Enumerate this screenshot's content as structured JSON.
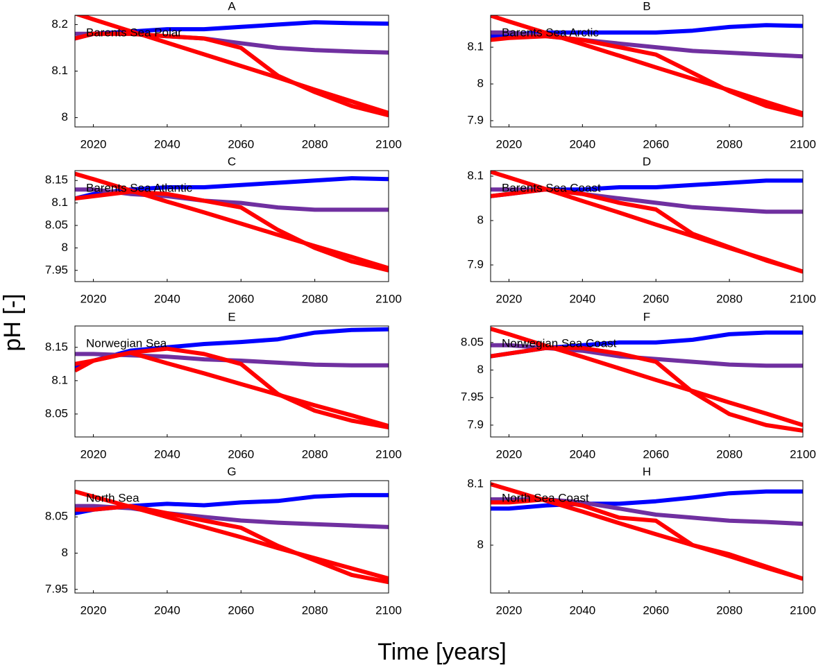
{
  "x_label": "Time [years]",
  "y_label": "pH [-]",
  "chart_data": [
    {
      "type": "line",
      "title": "A",
      "annotation": "Barents Sea Polar",
      "x": [
        2015,
        2020,
        2030,
        2040,
        2050,
        2060,
        2070,
        2080,
        2090,
        2100
      ],
      "xlim": [
        2015,
        2100
      ],
      "xticks": [
        2020,
        2040,
        2060,
        2080,
        2100
      ],
      "ylim": [
        7.98,
        8.22
      ],
      "yticks": [
        8,
        8.1,
        8.2
      ],
      "series": [
        {
          "color": "#0000ff",
          "values": [
            8.17,
            8.18,
            8.185,
            8.19,
            8.19,
            8.195,
            8.2,
            8.205,
            8.203,
            8.202
          ]
        },
        {
          "color": "#7030a0",
          "values": [
            8.18,
            8.18,
            8.18,
            8.175,
            8.17,
            8.16,
            8.15,
            8.145,
            8.142,
            8.14
          ]
        },
        {
          "color": "#ff0000",
          "values": [
            8.17,
            8.18,
            8.18,
            8.175,
            8.17,
            8.15,
            8.09,
            8.055,
            8.025,
            8.005
          ]
        },
        {
          "color": "#ff0000",
          "values": [
            8.224,
            8.211,
            8.186,
            8.161,
            8.136,
            8.111,
            8.086,
            8.06,
            8.035,
            8.01
          ]
        }
      ]
    },
    {
      "type": "line",
      "title": "B",
      "annotation": "Barents Sea Arctic",
      "x": [
        2015,
        2020,
        2030,
        2040,
        2050,
        2060,
        2070,
        2080,
        2090,
        2100
      ],
      "xlim": [
        2015,
        2100
      ],
      "xticks": [
        2020,
        2040,
        2060,
        2080,
        2100
      ],
      "ylim": [
        7.883,
        8.187
      ],
      "yticks": [
        7.9,
        8,
        8.1
      ],
      "series": [
        {
          "color": "#0000ff",
          "values": [
            8.13,
            8.135,
            8.14,
            8.14,
            8.14,
            8.14,
            8.145,
            8.155,
            8.16,
            8.158
          ]
        },
        {
          "color": "#7030a0",
          "values": [
            8.14,
            8.14,
            8.13,
            8.12,
            8.11,
            8.1,
            8.09,
            8.085,
            8.08,
            8.075
          ]
        },
        {
          "color": "#ff0000",
          "values": [
            8.12,
            8.125,
            8.13,
            8.12,
            8.1,
            8.08,
            8.03,
            7.98,
            7.94,
            7.915
          ]
        },
        {
          "color": "#ff0000",
          "values": [
            8.186,
            8.17,
            8.139,
            8.108,
            8.077,
            8.045,
            8.014,
            7.983,
            7.951,
            7.92
          ]
        }
      ]
    },
    {
      "type": "line",
      "title": "C",
      "annotation": "Barents Sea Atlantic",
      "x": [
        2015,
        2020,
        2030,
        2040,
        2050,
        2060,
        2070,
        2080,
        2090,
        2100
      ],
      "xlim": [
        2015,
        2100
      ],
      "xticks": [
        2020,
        2040,
        2060,
        2080,
        2100
      ],
      "ylim": [
        7.925,
        8.172
      ],
      "yticks": [
        7.95,
        8,
        8.05,
        8.1,
        8.15
      ],
      "series": [
        {
          "color": "#0000ff",
          "values": [
            8.11,
            8.12,
            8.13,
            8.135,
            8.135,
            8.14,
            8.145,
            8.15,
            8.155,
            8.153
          ]
        },
        {
          "color": "#7030a0",
          "values": [
            8.13,
            8.13,
            8.12,
            8.115,
            8.105,
            8.1,
            8.09,
            8.085,
            8.085,
            8.085
          ]
        },
        {
          "color": "#ff0000",
          "values": [
            8.11,
            8.115,
            8.125,
            8.12,
            8.105,
            8.09,
            8.04,
            8.0,
            7.97,
            7.95
          ]
        },
        {
          "color": "#ff0000",
          "values": [
            8.165,
            8.153,
            8.128,
            8.103,
            8.079,
            8.054,
            8.029,
            8.004,
            7.98,
            7.955
          ]
        }
      ]
    },
    {
      "type": "line",
      "title": "D",
      "annotation": "Barents Sea Coast",
      "x": [
        2015,
        2020,
        2030,
        2040,
        2050,
        2060,
        2070,
        2080,
        2090,
        2100
      ],
      "xlim": [
        2015,
        2100
      ],
      "xticks": [
        2020,
        2040,
        2060,
        2080,
        2100
      ],
      "ylim": [
        7.8625,
        8.1125
      ],
      "yticks": [
        7.9,
        8,
        8.1
      ],
      "series": [
        {
          "color": "#0000ff",
          "values": [
            8.055,
            8.06,
            8.07,
            8.07,
            8.075,
            8.075,
            8.08,
            8.085,
            8.09,
            8.09
          ]
        },
        {
          "color": "#7030a0",
          "values": [
            8.07,
            8.07,
            8.07,
            8.06,
            8.05,
            8.04,
            8.03,
            8.025,
            8.02,
            8.02
          ]
        },
        {
          "color": "#ff0000",
          "values": [
            8.055,
            8.06,
            8.07,
            8.06,
            8.04,
            8.025,
            7.97,
            7.94,
            7.91,
            7.885
          ]
        },
        {
          "color": "#ff0000",
          "values": [
            8.11,
            8.097,
            8.071,
            8.044,
            8.018,
            7.991,
            7.965,
            7.938,
            7.912,
            7.885
          ]
        }
      ]
    },
    {
      "type": "line",
      "title": "E",
      "annotation": "Norwegian Sea",
      "x": [
        2015,
        2020,
        2030,
        2040,
        2050,
        2060,
        2070,
        2080,
        2090,
        2100
      ],
      "xlim": [
        2015,
        2100
      ],
      "xticks": [
        2020,
        2040,
        2060,
        2080,
        2100
      ],
      "ylim": [
        8.0156,
        8.182
      ],
      "yticks": [
        8.05,
        8.1,
        8.15
      ],
      "series": [
        {
          "color": "#0000ff",
          "values": [
            8.12,
            8.13,
            8.145,
            8.15,
            8.155,
            8.158,
            8.162,
            8.172,
            8.176,
            8.177
          ]
        },
        {
          "color": "#7030a0",
          "values": [
            8.14,
            8.14,
            8.138,
            8.136,
            8.132,
            8.13,
            8.127,
            8.124,
            8.123,
            8.123
          ]
        },
        {
          "color": "#ff0000",
          "values": [
            8.115,
            8.13,
            8.142,
            8.148,
            8.14,
            8.125,
            8.08,
            8.055,
            8.04,
            8.03
          ]
        },
        {
          "color": "#ff0000",
          "values": [
            8.125,
            8.13,
            8.142,
            8.126,
            8.111,
            8.095,
            8.079,
            8.063,
            8.048,
            8.032
          ]
        }
      ]
    },
    {
      "type": "line",
      "title": "F",
      "annotation": "Norwegian Sea Coast",
      "x": [
        2015,
        2020,
        2030,
        2040,
        2050,
        2060,
        2070,
        2080,
        2090,
        2100
      ],
      "xlim": [
        2015,
        2100
      ],
      "xticks": [
        2020,
        2040,
        2060,
        2080,
        2100
      ],
      "ylim": [
        7.8785,
        8.08
      ],
      "yticks": [
        7.9,
        7.95,
        8,
        8.05
      ],
      "series": [
        {
          "color": "#0000ff",
          "values": [
            8.025,
            8.03,
            8.04,
            8.045,
            8.05,
            8.05,
            8.055,
            8.065,
            8.068,
            8.068
          ]
        },
        {
          "color": "#7030a0",
          "values": [
            8.045,
            8.045,
            8.04,
            8.035,
            8.025,
            8.02,
            8.015,
            8.01,
            8.008,
            8.008
          ]
        },
        {
          "color": "#ff0000",
          "values": [
            8.025,
            8.03,
            8.04,
            8.04,
            8.03,
            8.015,
            7.96,
            7.92,
            7.9,
            7.89
          ]
        },
        {
          "color": "#ff0000",
          "values": [
            8.075,
            8.065,
            8.044,
            8.024,
            8.003,
            7.982,
            7.962,
            7.941,
            7.921,
            7.9
          ]
        }
      ]
    },
    {
      "type": "line",
      "title": "G",
      "annotation": "North Sea",
      "x": [
        2015,
        2020,
        2030,
        2040,
        2050,
        2060,
        2070,
        2080,
        2090,
        2100
      ],
      "xlim": [
        2015,
        2100
      ],
      "xticks": [
        2020,
        2040,
        2060,
        2080,
        2100
      ],
      "ylim": [
        7.945,
        8.1
      ],
      "yticks": [
        7.95,
        8,
        8.05
      ],
      "series": [
        {
          "color": "#0000ff",
          "values": [
            8.055,
            8.06,
            8.065,
            8.068,
            8.066,
            8.07,
            8.072,
            8.078,
            8.08,
            8.08
          ]
        },
        {
          "color": "#7030a0",
          "values": [
            8.065,
            8.065,
            8.062,
            8.055,
            8.05,
            8.045,
            8.042,
            8.04,
            8.038,
            8.036
          ]
        },
        {
          "color": "#ff0000",
          "values": [
            8.06,
            8.06,
            8.065,
            8.055,
            8.045,
            8.035,
            8.01,
            7.99,
            7.97,
            7.96
          ]
        },
        {
          "color": "#ff0000",
          "values": [
            8.085,
            8.078,
            8.064,
            8.05,
            8.036,
            8.022,
            8.007,
            7.993,
            7.979,
            7.965
          ]
        }
      ]
    },
    {
      "type": "line",
      "title": "H",
      "annotation": "North Sea Coast",
      "x": [
        2015,
        2020,
        2030,
        2040,
        2050,
        2060,
        2070,
        2080,
        2090,
        2100
      ],
      "xlim": [
        2015,
        2100
      ],
      "xticks": [
        2020,
        2040,
        2060,
        2080,
        2100
      ],
      "ylim": [
        7.9216,
        8.1057
      ],
      "yticks": [
        8,
        8.1
      ],
      "series": [
        {
          "color": "#0000ff",
          "values": [
            8.06,
            8.06,
            8.065,
            8.068,
            8.068,
            8.072,
            8.078,
            8.085,
            8.088,
            8.088
          ]
        },
        {
          "color": "#7030a0",
          "values": [
            8.075,
            8.075,
            8.075,
            8.07,
            8.06,
            8.05,
            8.045,
            8.04,
            8.038,
            8.035
          ]
        },
        {
          "color": "#ff0000",
          "values": [
            8.07,
            8.07,
            8.075,
            8.065,
            8.045,
            8.04,
            8.0,
            7.985,
            7.965,
            7.945
          ]
        },
        {
          "color": "#ff0000",
          "values": [
            8.1,
            8.091,
            8.073,
            8.055,
            8.036,
            8.018,
            8,
            7.982,
            7.963,
            7.945
          ]
        }
      ]
    }
  ]
}
